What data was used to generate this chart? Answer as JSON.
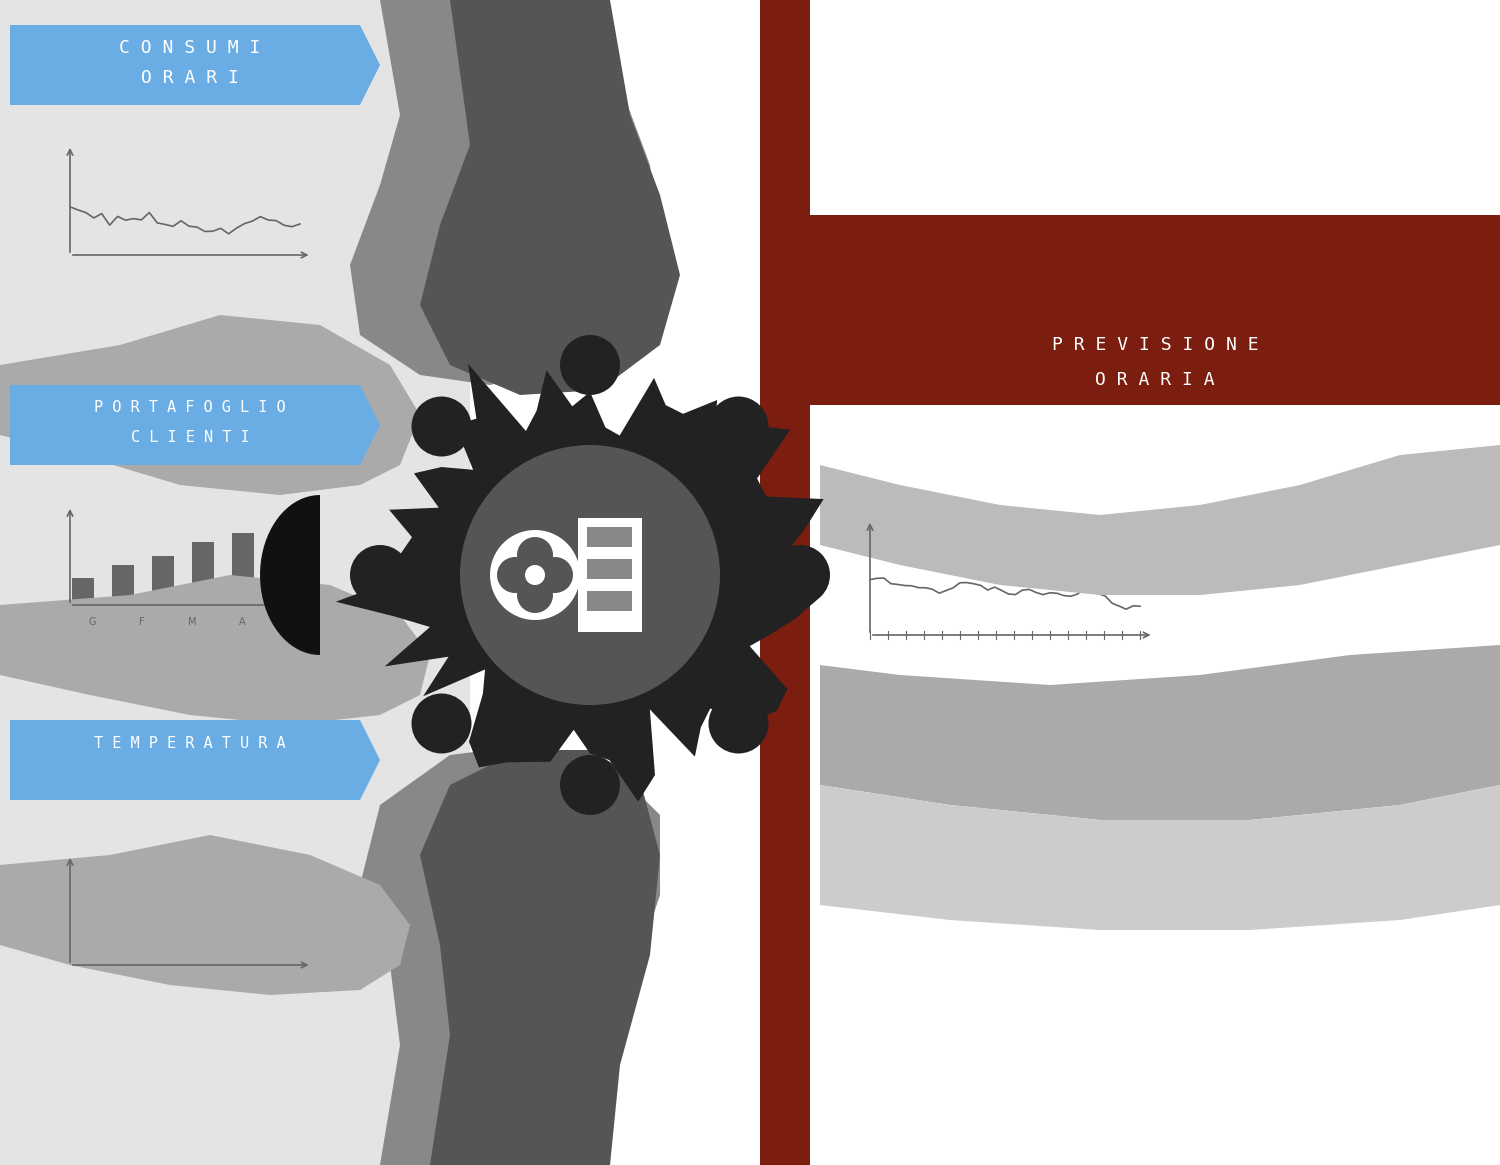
{
  "bg_color": "#ffffff",
  "left_panel_color": "#e0e0e0",
  "blue_label_color": "#6aade4",
  "dark_red_color": "#7b1e10",
  "dark_gray_center": "#555555",
  "medium_gray": "#888888",
  "light_gray": "#cccccc",
  "black": "#1a1a1a",
  "labels_left": [
    "CONSUMI\nORARI",
    "PORTAFOGLIO\nCLIENTI",
    "TEMPERATURA"
  ],
  "label_right": "PREVISIONE\nORARIA",
  "chart_line_color": "#aaaaaa",
  "axis_color": "#666666"
}
